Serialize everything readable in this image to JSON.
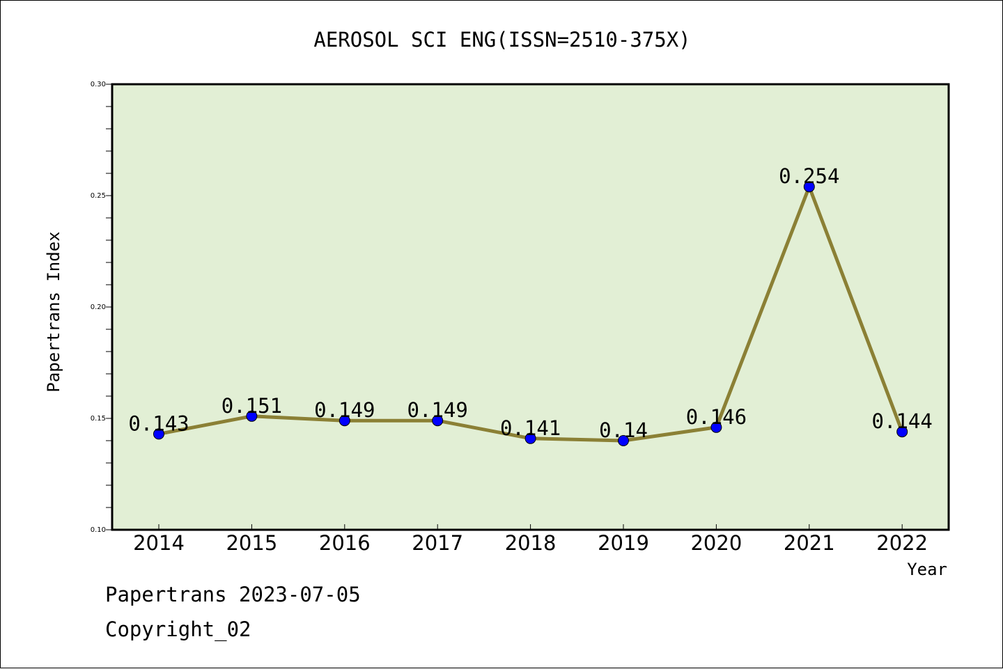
{
  "chart_data": {
    "type": "line",
    "title": "AEROSOL SCI ENG(ISSN=2510-375X)",
    "xlabel": "Year",
    "ylabel": "Papertrans Index",
    "categories": [
      "2014",
      "2015",
      "2016",
      "2017",
      "2018",
      "2019",
      "2020",
      "2021",
      "2022"
    ],
    "series": [
      {
        "values": [
          0.143,
          0.151,
          0.149,
          0.149,
          0.141,
          0.14,
          0.146,
          0.254,
          0.144
        ],
        "value_labels": [
          "0.143",
          "0.151",
          "0.149",
          "0.149",
          "0.141",
          "0.14",
          "0.146",
          "0.254",
          "0.144"
        ]
      }
    ],
    "ylim": [
      0.1,
      0.3
    ],
    "yticks": [
      "0.10",
      "0.15",
      "0.20",
      "0.25",
      "0.30"
    ],
    "grid": false,
    "colors": {
      "plot_background": "#e2efd5",
      "line": "#8b8035",
      "marker": "#0000ff"
    }
  },
  "footer": {
    "source_line": "Papertrans 2023-07-05",
    "copyright_line": "Copyright_02"
  }
}
